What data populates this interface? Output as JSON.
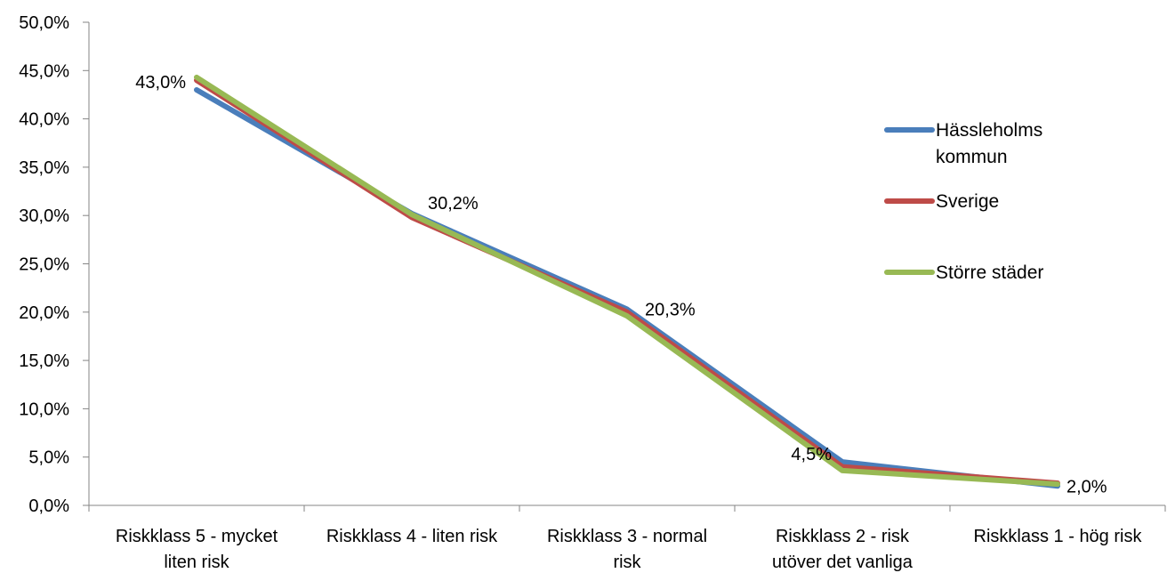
{
  "chart_data": {
    "type": "line",
    "title": "",
    "xlabel": "",
    "ylabel": "",
    "categories": [
      [
        "Riskklass 5 - mycket",
        "liten risk"
      ],
      [
        "Riskklass 4 - liten risk"
      ],
      [
        "Riskklass 3 - normal",
        "risk"
      ],
      [
        "Riskklass 2 - risk",
        "utöver det vanliga"
      ],
      [
        "Riskklass 1 - hög risk"
      ]
    ],
    "ylim": [
      0,
      50
    ],
    "ytick_step": 5,
    "ytick_labels": [
      "0,0%",
      "5,0%",
      "10,0%",
      "15,0%",
      "20,0%",
      "25,0%",
      "30,0%",
      "35,0%",
      "40,0%",
      "45,0%",
      "50,0%"
    ],
    "grid": false,
    "legend_position": "right",
    "series": [
      {
        "name": [
          "Hässleholms",
          "kommun"
        ],
        "color": "#4a7ebb",
        "values": [
          43.0,
          30.2,
          20.3,
          4.5,
          2.0
        ]
      },
      {
        "name": [
          "Sverige"
        ],
        "color": "#be4b48",
        "values": [
          44.0,
          29.8,
          20.0,
          4.0,
          2.3
        ]
      },
      {
        "name": [
          "Större städer"
        ],
        "color": "#98b954",
        "values": [
          44.3,
          30.1,
          19.6,
          3.6,
          2.2
        ]
      }
    ],
    "data_labels": [
      {
        "series": 0,
        "index": 0,
        "text": "43,0%"
      },
      {
        "series": 0,
        "index": 1,
        "text": "30,2%"
      },
      {
        "series": 0,
        "index": 2,
        "text": "20,3%"
      },
      {
        "series": 0,
        "index": 3,
        "text": "4,5%"
      },
      {
        "series": 0,
        "index": 4,
        "text": "2,0%"
      }
    ]
  }
}
